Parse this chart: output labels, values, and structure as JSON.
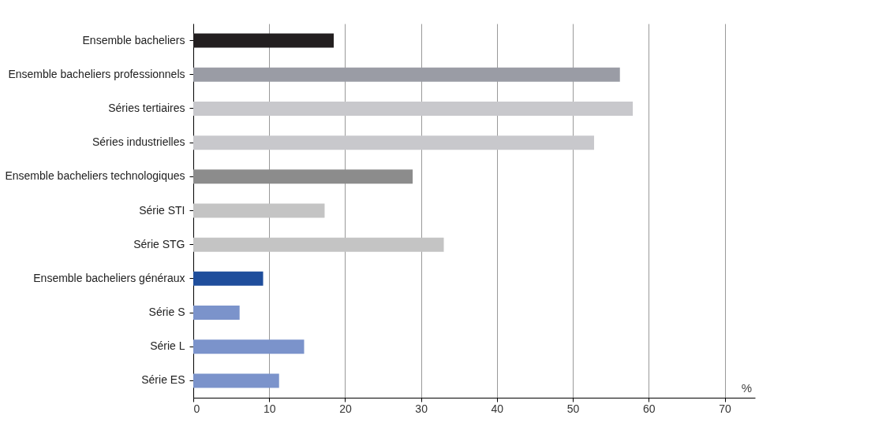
{
  "chart_data": {
    "type": "bar",
    "orientation": "horizontal",
    "categories": [
      "Ensemble bacheliers",
      "Ensemble bacheliers professionnels",
      "Séries tertiaires",
      "Séries industrielles",
      "Ensemble bacheliers technologiques",
      "Série STI",
      "Série STG",
      "Ensemble bacheliers généraux",
      "Série S",
      "Série L",
      "Série ES"
    ],
    "values": [
      18.5,
      56.2,
      57.9,
      52.8,
      28.9,
      17.3,
      33,
      9.2,
      6.1,
      14.6,
      11.3
    ],
    "colors": [
      "#231f20",
      "#9a9ca5",
      "#c8c8cc",
      "#c8c8cc",
      "#8c8c8c",
      "#c4c4c4",
      "#c4c4c4",
      "#1f4e9c",
      "#7b93cb",
      "#7b93cb",
      "#7b93cb"
    ],
    "xlim": [
      0,
      74
    ],
    "xticks": [
      0,
      10,
      20,
      30,
      40,
      50,
      60,
      70
    ],
    "grid": "x",
    "annotations": [
      "%"
    ]
  }
}
